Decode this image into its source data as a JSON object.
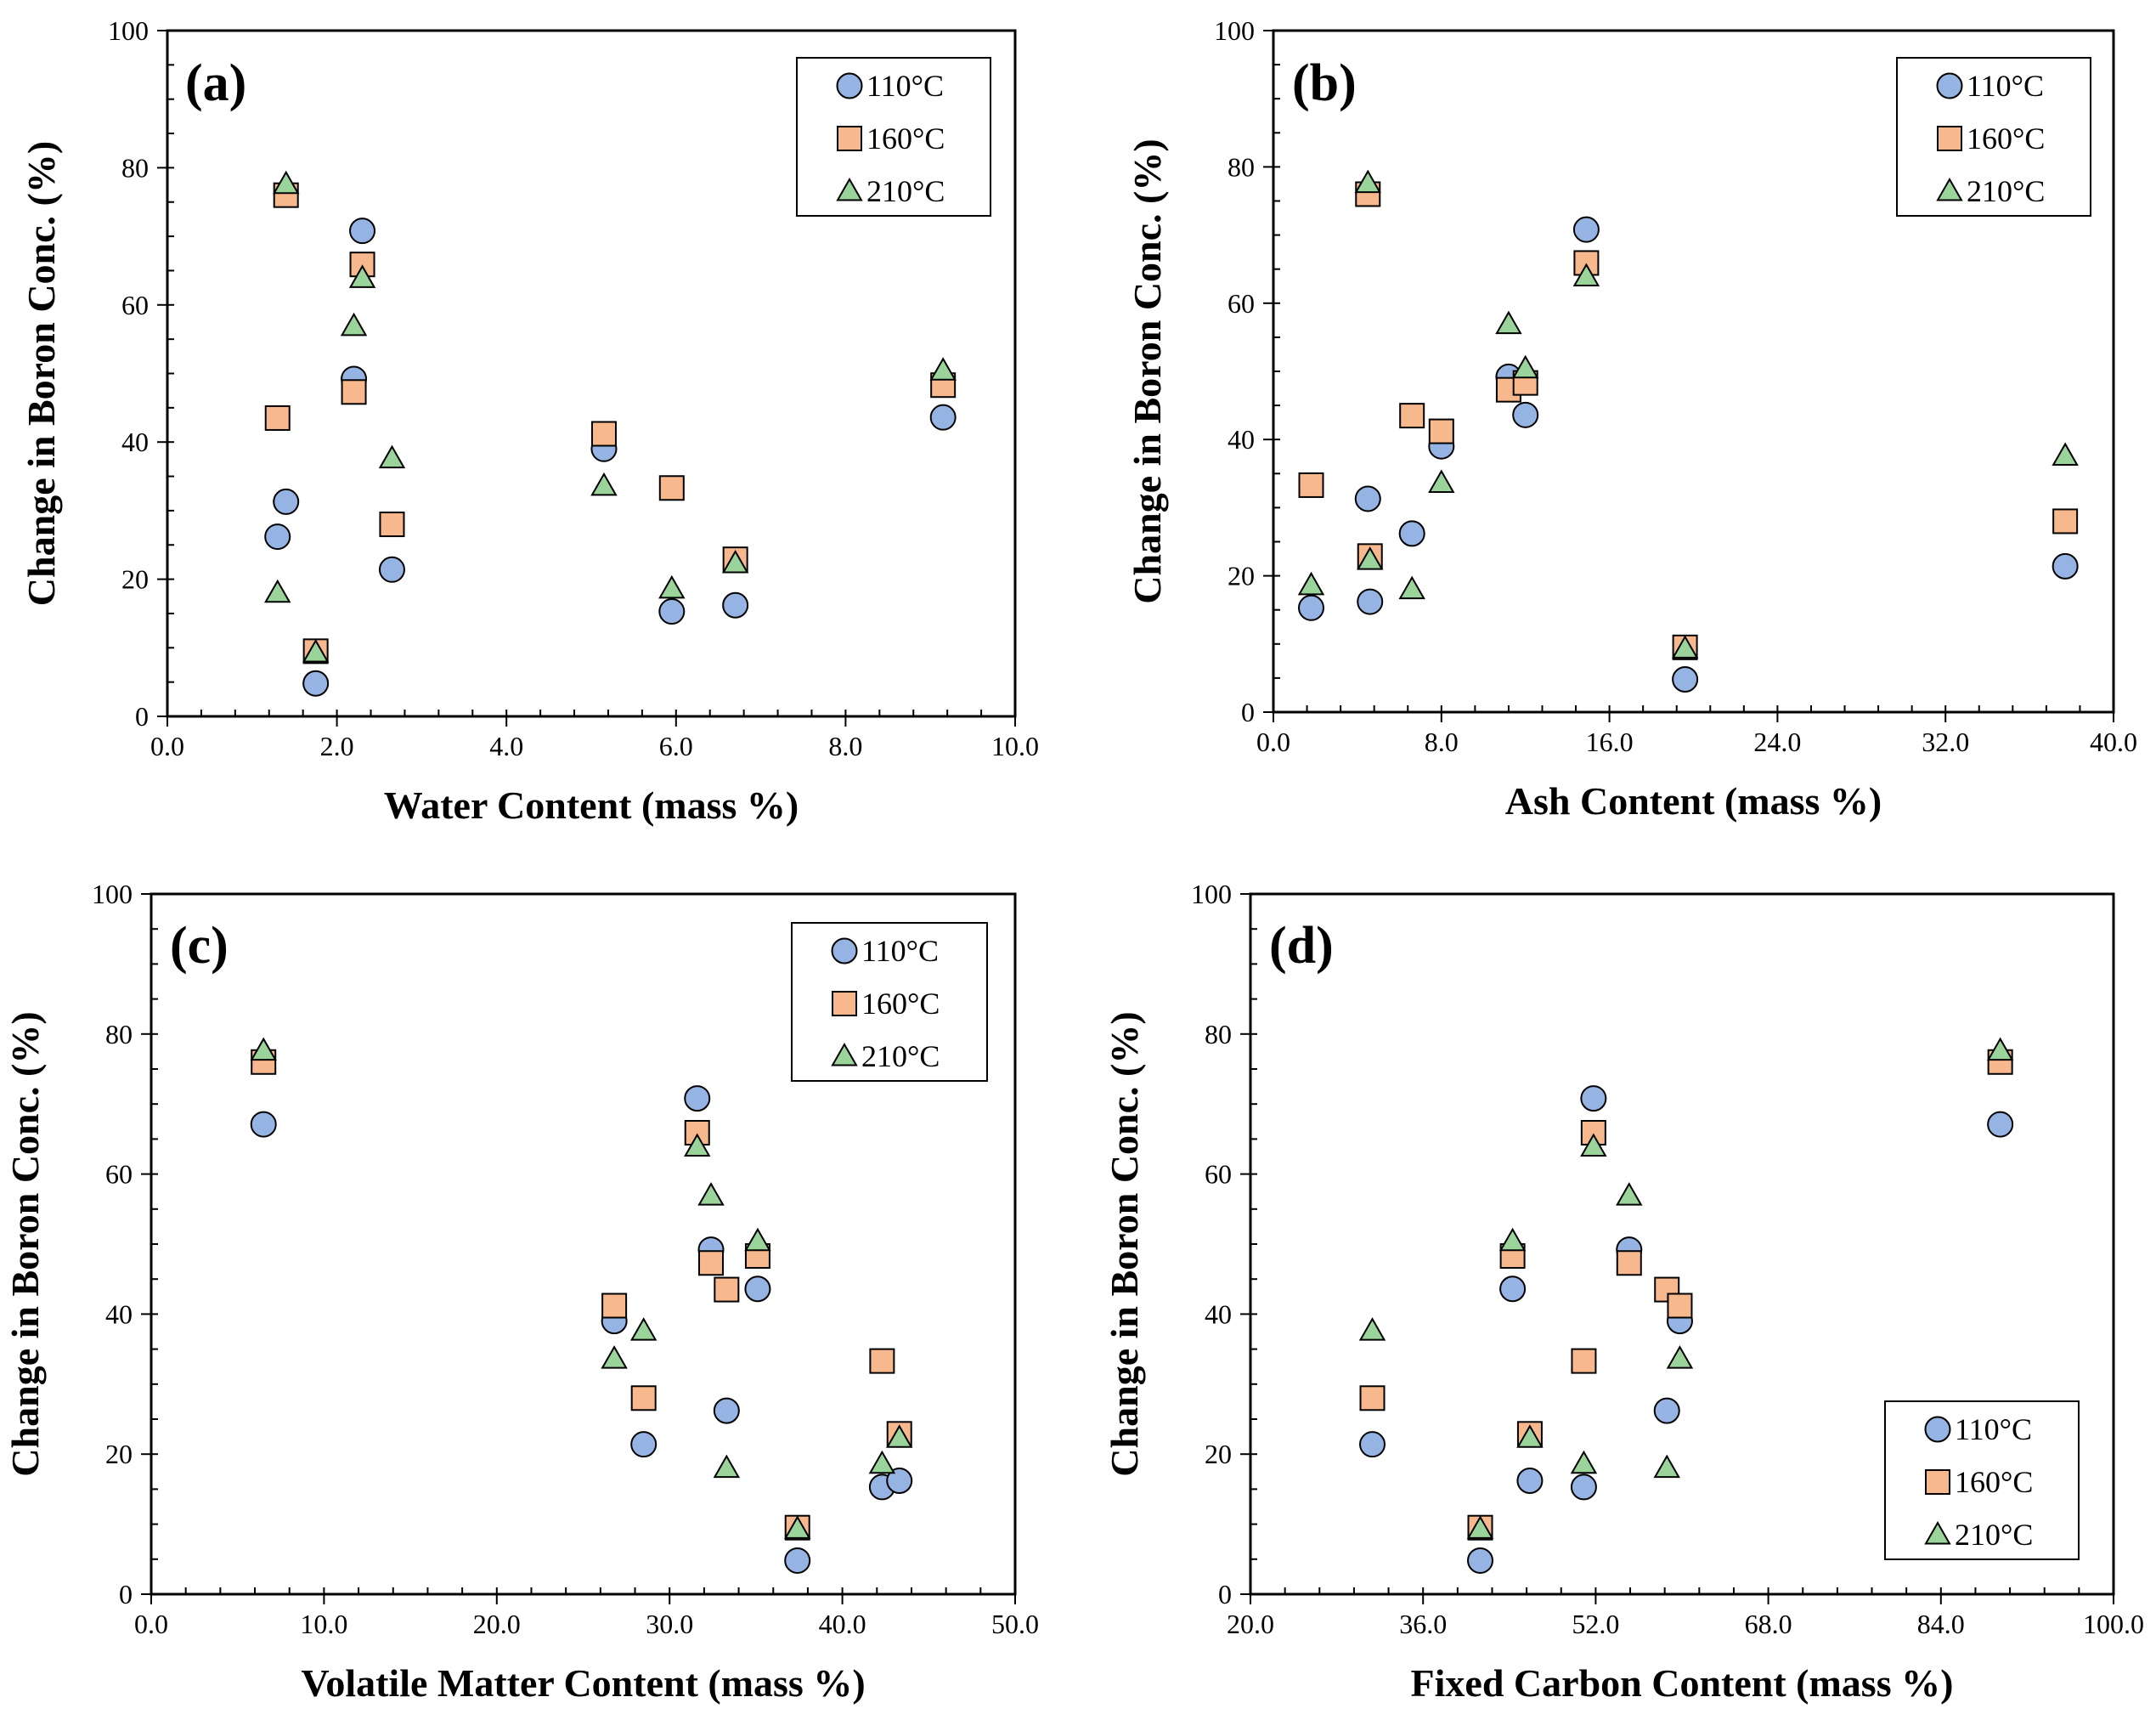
{
  "colors": {
    "s110": "#95b3e3",
    "s160": "#f8b88e",
    "s210": "#9bd49a",
    "stroke": "#000000"
  },
  "series_markers": {
    "110°C": "circle",
    "160°C": "square",
    "210°C": "triangle"
  },
  "chart_data": [
    {
      "type": "scatter",
      "panel_label": "(a)",
      "xlabel": "Water Content (mass %)",
      "ylabel": "Change in Boron Conc. (%)",
      "xlim": [
        0,
        10
      ],
      "ylim": [
        0,
        100
      ],
      "x_ticks": [
        "0.0",
        "2.0",
        "4.0",
        "6.0",
        "8.0",
        "10.0"
      ],
      "y_ticks": [
        "0",
        "20",
        "40",
        "60",
        "80",
        "100"
      ],
      "x_minor_step": 0.4,
      "y_minor_step": 5,
      "legend_position": "top-right",
      "series": [
        {
          "name": "110°C",
          "points": [
            [
              1.3,
              26.2
            ],
            [
              1.4,
              31.3
            ],
            [
              1.75,
              4.8
            ],
            [
              2.2,
              49.2
            ],
            [
              2.3,
              70.8
            ],
            [
              2.65,
              21.4
            ],
            [
              5.15,
              39.0
            ],
            [
              5.95,
              15.3
            ],
            [
              6.7,
              16.2
            ],
            [
              9.15,
              43.6
            ]
          ]
        },
        {
          "name": "160°C",
          "points": [
            [
              1.3,
              43.5
            ],
            [
              1.4,
              76.0
            ],
            [
              1.75,
              9.5
            ],
            [
              2.2,
              47.3
            ],
            [
              2.3,
              65.9
            ],
            [
              2.65,
              28.0
            ],
            [
              5.15,
              41.2
            ],
            [
              5.95,
              33.3
            ],
            [
              6.7,
              22.9
            ],
            [
              9.15,
              48.3
            ]
          ]
        },
        {
          "name": "210°C",
          "points": [
            [
              1.3,
              18.0
            ],
            [
              1.4,
              77.6
            ],
            [
              1.75,
              9.3
            ],
            [
              2.2,
              56.9
            ],
            [
              2.3,
              63.9
            ],
            [
              2.65,
              37.6
            ],
            [
              5.15,
              33.6
            ],
            [
              5.95,
              18.6
            ],
            [
              6.7,
              22.3
            ],
            [
              9.15,
              50.4
            ]
          ]
        }
      ]
    },
    {
      "type": "scatter",
      "panel_label": "(b)",
      "xlabel": "Ash Content (mass %)",
      "ylabel": "Change in Boron Conc. (%)",
      "xlim": [
        0,
        40
      ],
      "ylim": [
        0,
        100
      ],
      "x_ticks": [
        "0.0",
        "8.0",
        "16.0",
        "24.0",
        "32.0",
        "40.0"
      ],
      "y_ticks": [
        "0",
        "20",
        "40",
        "60",
        "80",
        "100"
      ],
      "x_minor_step": 1.6,
      "y_minor_step": 5,
      "legend_position": "top-right",
      "series": [
        {
          "name": "110°C",
          "points": [
            [
              1.8,
              15.3
            ],
            [
              4.5,
              31.3
            ],
            [
              4.6,
              16.2
            ],
            [
              6.6,
              26.2
            ],
            [
              8.0,
              39.0
            ],
            [
              11.2,
              49.2
            ],
            [
              12.0,
              43.6
            ],
            [
              14.9,
              70.8
            ],
            [
              19.6,
              4.8
            ],
            [
              37.7,
              21.4
            ]
          ]
        },
        {
          "name": "160°C",
          "points": [
            [
              1.8,
              33.3
            ],
            [
              4.5,
              76.0
            ],
            [
              4.6,
              22.9
            ],
            [
              6.6,
              43.5
            ],
            [
              8.0,
              41.2
            ],
            [
              11.2,
              47.3
            ],
            [
              12.0,
              48.3
            ],
            [
              14.9,
              65.9
            ],
            [
              19.6,
              9.5
            ],
            [
              37.7,
              28.0
            ]
          ]
        },
        {
          "name": "210°C",
          "points": [
            [
              1.8,
              18.6
            ],
            [
              4.5,
              77.6
            ],
            [
              4.6,
              22.3
            ],
            [
              6.6,
              18.0
            ],
            [
              8.0,
              33.6
            ],
            [
              11.2,
              56.9
            ],
            [
              12.0,
              50.4
            ],
            [
              14.9,
              63.9
            ],
            [
              19.6,
              9.3
            ],
            [
              37.7,
              37.6
            ]
          ]
        }
      ]
    },
    {
      "type": "scatter",
      "panel_label": "(c)",
      "xlabel": "Volatile Matter Content (mass %)",
      "ylabel": "Change in Boron Conc. (%)",
      "xlim": [
        0,
        50
      ],
      "ylim": [
        0,
        100
      ],
      "x_ticks": [
        "0.0",
        "10.0",
        "20.0",
        "30.0",
        "40.0",
        "50.0"
      ],
      "y_ticks": [
        "0",
        "20",
        "40",
        "60",
        "80",
        "100"
      ],
      "x_minor_step": 2,
      "y_minor_step": 5,
      "legend_position": "top-right",
      "series": [
        {
          "name": "110°C",
          "points": [
            [
              6.5,
              67.1
            ],
            [
              26.8,
              39.0
            ],
            [
              28.5,
              21.4
            ],
            [
              31.6,
              70.8
            ],
            [
              32.4,
              49.2
            ],
            [
              33.3,
              26.2
            ],
            [
              35.1,
              43.6
            ],
            [
              37.4,
              4.8
            ],
            [
              42.3,
              15.3
            ],
            [
              43.3,
              16.2
            ]
          ]
        },
        {
          "name": "160°C",
          "points": [
            [
              6.5,
              76.0
            ],
            [
              26.8,
              41.2
            ],
            [
              28.5,
              28.0
            ],
            [
              31.6,
              65.9
            ],
            [
              32.4,
              47.3
            ],
            [
              33.3,
              43.5
            ],
            [
              35.1,
              48.3
            ],
            [
              37.4,
              9.5
            ],
            [
              42.3,
              33.3
            ],
            [
              43.3,
              22.9
            ]
          ]
        },
        {
          "name": "210°C",
          "points": [
            [
              6.5,
              77.6
            ],
            [
              26.8,
              33.6
            ],
            [
              28.5,
              37.6
            ],
            [
              31.6,
              63.9
            ],
            [
              32.4,
              56.9
            ],
            [
              33.3,
              18.0
            ],
            [
              35.1,
              50.4
            ],
            [
              37.4,
              9.3
            ],
            [
              42.3,
              18.6
            ],
            [
              43.3,
              22.3
            ]
          ]
        }
      ]
    },
    {
      "type": "scatter",
      "panel_label": "(d)",
      "xlabel": "Fixed Carbon Content (mass %)",
      "ylabel": "Change in Boron Conc. (%)",
      "xlim": [
        20,
        100
      ],
      "ylim": [
        0,
        100
      ],
      "x_ticks": [
        "20.0",
        "36.0",
        "52.0",
        "68.0",
        "84.0",
        "100.0"
      ],
      "y_ticks": [
        "0",
        "20",
        "40",
        "60",
        "80",
        "100"
      ],
      "x_minor_step": 3.2,
      "y_minor_step": 5,
      "legend_position": "bottom-right",
      "series": [
        {
          "name": "110°C",
          "points": [
            [
              31.3,
              21.4
            ],
            [
              41.3,
              4.8
            ],
            [
              44.3,
              43.6
            ],
            [
              45.9,
              16.2
            ],
            [
              50.9,
              15.3
            ],
            [
              51.8,
              70.8
            ],
            [
              55.1,
              49.2
            ],
            [
              58.6,
              26.2
            ],
            [
              59.8,
              39.0
            ],
            [
              89.5,
              67.1
            ]
          ]
        },
        {
          "name": "160°C",
          "points": [
            [
              31.3,
              28.0
            ],
            [
              41.3,
              9.5
            ],
            [
              44.3,
              48.3
            ],
            [
              45.9,
              22.9
            ],
            [
              50.9,
              33.3
            ],
            [
              51.8,
              65.9
            ],
            [
              55.1,
              47.3
            ],
            [
              58.6,
              43.5
            ],
            [
              59.8,
              41.2
            ],
            [
              89.5,
              76.0
            ]
          ]
        },
        {
          "name": "210°C",
          "points": [
            [
              31.3,
              37.6
            ],
            [
              41.3,
              9.3
            ],
            [
              44.3,
              50.4
            ],
            [
              45.9,
              22.3
            ],
            [
              50.9,
              18.6
            ],
            [
              51.8,
              63.9
            ],
            [
              55.1,
              56.9
            ],
            [
              58.6,
              18.0
            ],
            [
              59.8,
              33.6
            ],
            [
              89.5,
              77.6
            ]
          ]
        }
      ]
    }
  ]
}
